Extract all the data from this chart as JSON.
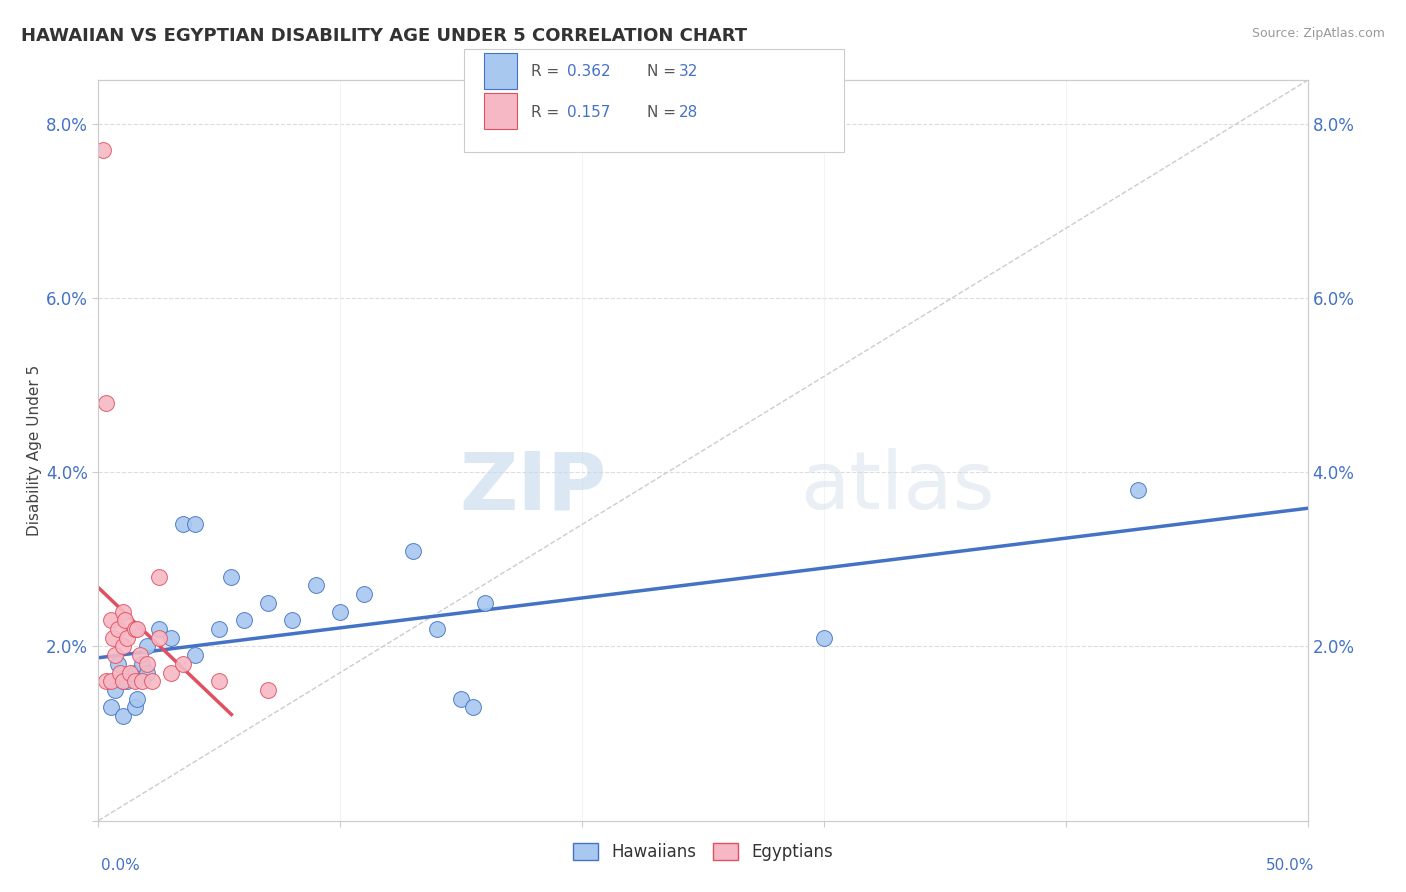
{
  "title": "HAWAIIAN VS EGYPTIAN DISABILITY AGE UNDER 5 CORRELATION CHART",
  "source": "Source: ZipAtlas.com",
  "ylabel": "Disability Age Under 5",
  "xlim": [
    0.0,
    0.5
  ],
  "ylim": [
    0.0,
    0.085
  ],
  "hawaiian_R": 0.362,
  "hawaiian_N": 32,
  "egyptian_R": 0.157,
  "egyptian_N": 28,
  "hawaiian_color": "#a8c8f0",
  "egyptian_color": "#f5b8c4",
  "trend_hawaiian_color": "#4472c4",
  "trend_egyptian_color": "#e05060",
  "hawaiian_scatter_x": [
    0.005,
    0.007,
    0.008,
    0.01,
    0.01,
    0.012,
    0.015,
    0.015,
    0.016,
    0.018,
    0.02,
    0.02,
    0.025,
    0.03,
    0.035,
    0.04,
    0.04,
    0.05,
    0.055,
    0.06,
    0.07,
    0.08,
    0.09,
    0.1,
    0.11,
    0.13,
    0.14,
    0.15,
    0.155,
    0.16,
    0.3,
    0.43
  ],
  "hawaiian_scatter_y": [
    0.013,
    0.015,
    0.018,
    0.016,
    0.012,
    0.016,
    0.017,
    0.013,
    0.014,
    0.018,
    0.02,
    0.017,
    0.022,
    0.021,
    0.034,
    0.019,
    0.034,
    0.022,
    0.028,
    0.023,
    0.025,
    0.023,
    0.027,
    0.024,
    0.026,
    0.031,
    0.022,
    0.014,
    0.013,
    0.025,
    0.021,
    0.038
  ],
  "egyptian_scatter_x": [
    0.002,
    0.003,
    0.003,
    0.005,
    0.005,
    0.006,
    0.007,
    0.008,
    0.009,
    0.01,
    0.01,
    0.01,
    0.011,
    0.012,
    0.013,
    0.015,
    0.015,
    0.016,
    0.017,
    0.018,
    0.02,
    0.022,
    0.025,
    0.025,
    0.03,
    0.035,
    0.05,
    0.07
  ],
  "egyptian_scatter_y": [
    0.077,
    0.048,
    0.016,
    0.023,
    0.016,
    0.021,
    0.019,
    0.022,
    0.017,
    0.024,
    0.02,
    0.016,
    0.023,
    0.021,
    0.017,
    0.022,
    0.016,
    0.022,
    0.019,
    0.016,
    0.018,
    0.016,
    0.028,
    0.021,
    0.017,
    0.018,
    0.016,
    0.015
  ],
  "watermark_zip": "ZIP",
  "watermark_atlas": "atlas",
  "ytick_vals": [
    0.0,
    0.02,
    0.04,
    0.06,
    0.08
  ],
  "ytick_labels": [
    "",
    "2.0%",
    "4.0%",
    "6.0%",
    "8.0%"
  ]
}
